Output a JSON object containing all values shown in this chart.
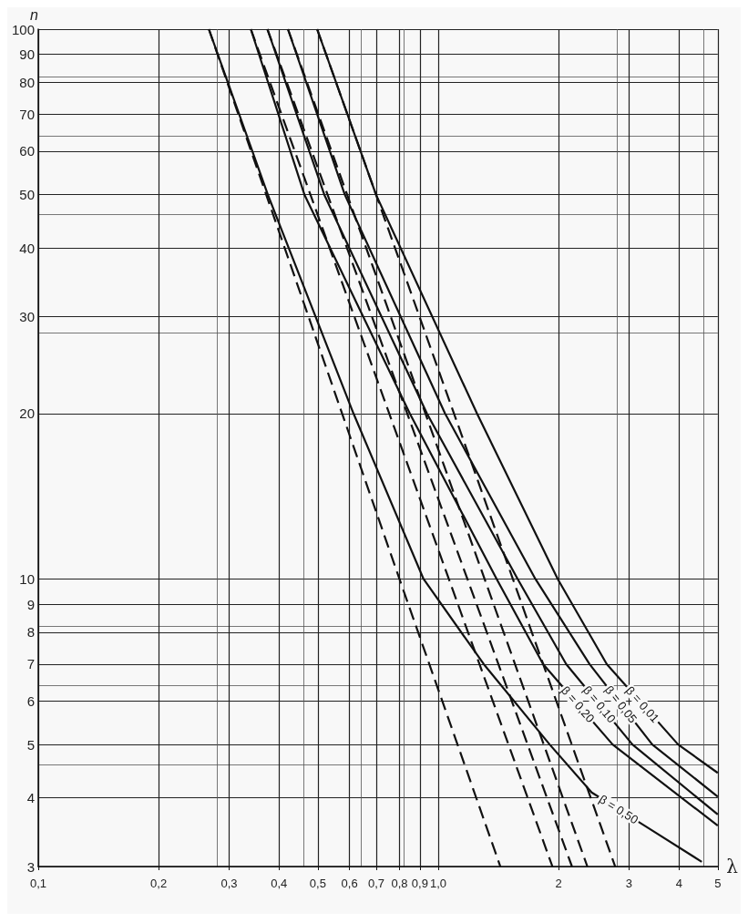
{
  "chart_data": {
    "type": "line",
    "xlabel": "λ",
    "ylabel": "n",
    "log": "xy",
    "grid": true,
    "legend": false,
    "marker": "none",
    "xlim": [
      0.1,
      5
    ],
    "ylim": [
      3,
      100
    ],
    "xticks": [
      {
        "value": 0.1,
        "label": "0,1"
      },
      {
        "value": 0.2,
        "label": "0,2"
      },
      {
        "value": 0.3,
        "label": "0,3"
      },
      {
        "value": 0.4,
        "label": "0,4"
      },
      {
        "value": 0.5,
        "label": "0,5"
      },
      {
        "value": 0.6,
        "label": "0,6"
      },
      {
        "value": 0.7,
        "label": "0,7"
      },
      {
        "value": 0.8,
        "label": "0,8"
      },
      {
        "value": 0.9,
        "label": "0,9"
      },
      {
        "value": 1,
        "label": "1,0"
      },
      2,
      3,
      4,
      5
    ],
    "yticks": [
      3,
      4,
      5,
      6,
      7,
      8,
      9,
      10,
      20,
      30,
      40,
      50,
      60,
      70,
      80,
      90,
      100
    ],
    "series": [
      {
        "name": "β = 0,01",
        "color": "#111111",
        "line_style": "solid",
        "x": [
          0.498,
          0.699,
          1.25,
          1.99,
          2.64,
          3.98,
          5
        ],
        "values": [
          100,
          50,
          20,
          10,
          7,
          5,
          4.44
        ]
      },
      {
        "name": "β = 0,05",
        "color": "#111111",
        "line_style": "solid",
        "x": [
          0.421,
          0.584,
          1.04,
          1.75,
          2.39,
          3.43,
          5
        ],
        "values": [
          100,
          50,
          20,
          10,
          7,
          5,
          4.02
        ]
      },
      {
        "name": "β = 0,10",
        "color": "#111111",
        "line_style": "solid",
        "x": [
          0.374,
          0.519,
          0.937,
          1.58,
          2.09,
          3.06,
          5
        ],
        "values": [
          100,
          50,
          20,
          10,
          7,
          5,
          3.73
        ]
      },
      {
        "name": "β = 0,20",
        "color": "#111111",
        "line_style": "solid",
        "x": [
          0.34,
          0.463,
          0.849,
          1.4,
          1.83,
          2.73,
          5
        ],
        "values": [
          100,
          50,
          20,
          10,
          7,
          5,
          3.56
        ]
      },
      {
        "name": "β = 0,50",
        "color": "#111111",
        "line_style": "solid",
        "x": [
          0.267,
          0.375,
          0.614,
          0.919,
          1.3,
          1.9,
          2.42,
          3.3,
          4.56
        ],
        "values": [
          100,
          50,
          20,
          10,
          7,
          5,
          4.09,
          3.55,
          3.06
        ]
      },
      {
        "color": "#111111",
        "line_style": "dashed",
        "x": [
          0.498,
          1.537,
          2.77
        ],
        "values": [
          100,
          10,
          3
        ]
      },
      {
        "color": "#111111",
        "line_style": "dashed",
        "x": [
          0.421,
          1.306,
          2.36
        ],
        "values": [
          100,
          10,
          3
        ]
      },
      {
        "color": "#111111",
        "line_style": "dashed",
        "x": [
          0.374,
          1.183,
          2.16
        ],
        "values": [
          100,
          10,
          3
        ]
      },
      {
        "color": "#111111",
        "line_style": "dashed",
        "x": [
          0.34,
          1.063,
          1.93
        ],
        "values": [
          100,
          10,
          3
        ]
      },
      {
        "color": "#111111",
        "line_style": "dashed",
        "x": [
          0.267,
          0.8,
          1.43
        ],
        "values": [
          100,
          10,
          3
        ]
      }
    ]
  }
}
